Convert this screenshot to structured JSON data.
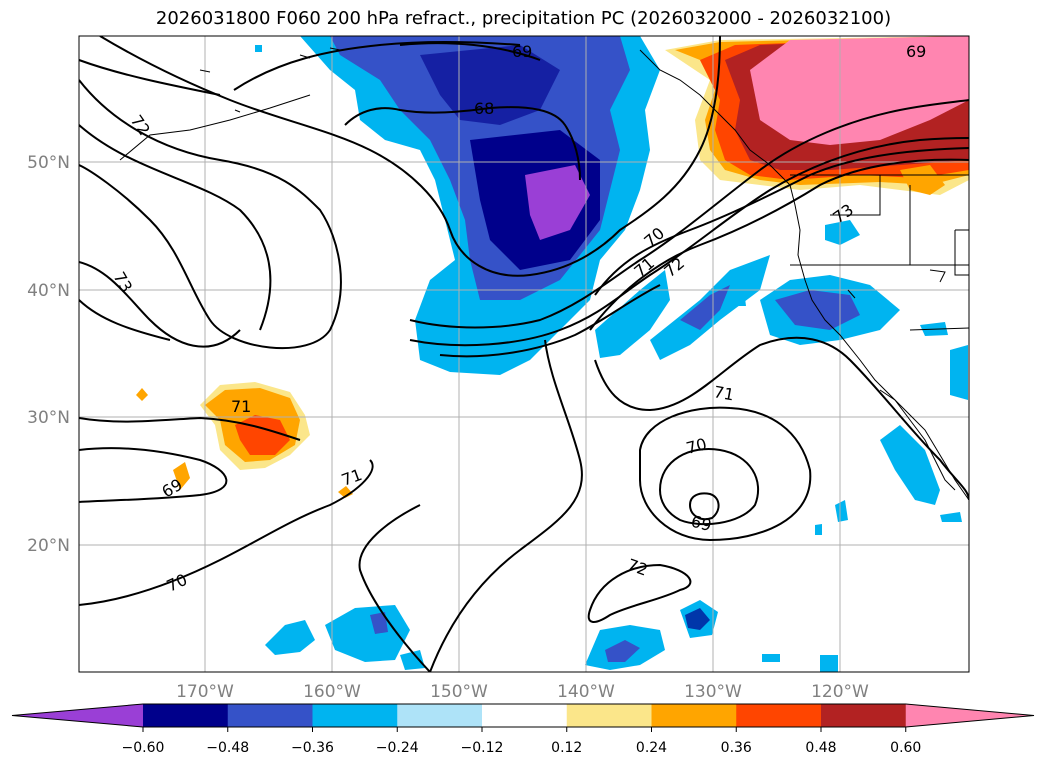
{
  "title": "2026031800 F060 200 hPa refract., precipitation PC (2026032000 - 2026032100)",
  "lat_labels": [
    "50°N",
    "40°N",
    "30°N",
    "20°N"
  ],
  "lon_labels": [
    "170°W",
    "160°W",
    "150°W",
    "140°W",
    "130°W",
    "120°W"
  ],
  "contour_labels": [
    "69",
    "68",
    "72",
    "73",
    "70",
    "71",
    "72",
    "73",
    "71",
    "69",
    "71",
    "70",
    "71",
    "70",
    "69",
    "72",
    "69"
  ],
  "colorbar": {
    "ticks": [
      "−0.60",
      "−0.48",
      "−0.36",
      "−0.24",
      "−0.12",
      "0.12",
      "0.24",
      "0.36",
      "0.48",
      "0.60"
    ],
    "colors": [
      "#9a3fd6",
      "#00008b",
      "#3552c8",
      "#00b4f0",
      "#aee3f8",
      "#ffffff",
      "#fbe68a",
      "#ffa500",
      "#ff4500",
      "#b22222",
      "#ff85b0"
    ]
  }
}
